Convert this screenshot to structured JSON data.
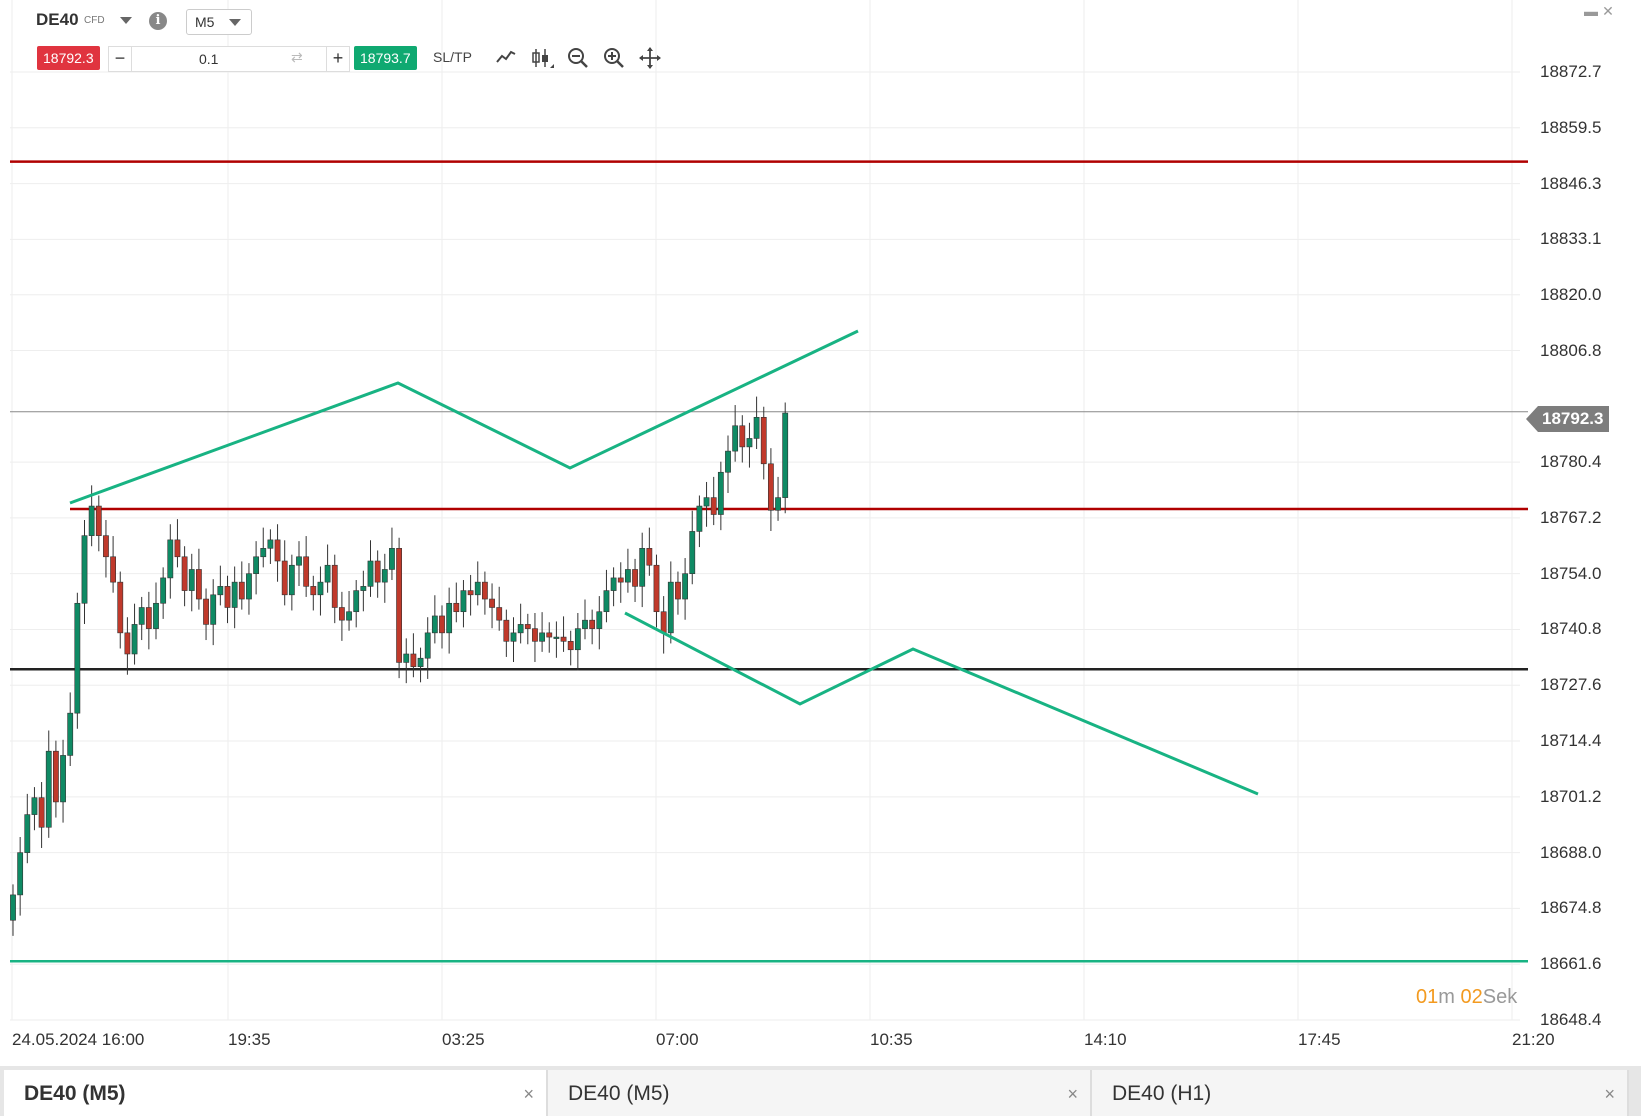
{
  "header": {
    "symbol": "DE40",
    "symbol_type": "CFD",
    "timeframe": "M5",
    "sell_price": "18792.3",
    "buy_price": "18793.7",
    "quantity": "0.1",
    "minus_label": "−",
    "plus_label": "+",
    "swap_icon": "⇄",
    "sltp_label": "SL/TP",
    "info_icon": "i"
  },
  "window_controls": [
    "minimize-icon",
    "close-icon"
  ],
  "toolbar_icons": [
    "line-chart-icon",
    "candlestick-icon",
    "zoom-out-icon",
    "zoom-in-icon",
    "crosshair-icon"
  ],
  "price_axis": [
    "18872.7",
    "18859.5",
    "18846.3",
    "18833.1",
    "18820.0",
    "18806.8",
    "18780.4",
    "18767.2",
    "18754.0",
    "18740.8",
    "18727.6",
    "18714.4",
    "18701.2",
    "18688.0",
    "18674.8",
    "18661.6",
    "18648.4"
  ],
  "current_price": "18792.3",
  "time_axis": [
    "24.05.2024 16:00",
    "19:35",
    "03:25",
    "07:00",
    "10:35",
    "14:10",
    "17:45",
    "21:20"
  ],
  "countdown": {
    "min_value": "01",
    "min_unit": "m",
    "sec_value": "02",
    "sec_unit": "Sek"
  },
  "tabs": [
    {
      "label": "DE40 (M5)",
      "active": true
    },
    {
      "label": "DE40 (M5)",
      "active": false
    },
    {
      "label": "DE40 (H1)",
      "active": false
    }
  ],
  "tab_close": "×",
  "colors": {
    "bull": "#0f8a64",
    "bear": "#c0392b",
    "resistance": "#b00000",
    "support": "#222222",
    "projection": "#18b383",
    "sell_bg": "#e0343f",
    "buy_bg": "#0fa971"
  },
  "chart_data": {
    "type": "candlestick",
    "y_range": [
      18648.4,
      18878
    ],
    "horizontal_lines": [
      {
        "price": 18851.5,
        "color": "#b00000"
      },
      {
        "price": 18769.3,
        "color": "#b00000"
      },
      {
        "price": 18731.4,
        "color": "#222222"
      },
      {
        "price": 18662.3,
        "color": "#18b383"
      },
      {
        "price": 18792.3,
        "color": "#888888"
      }
    ],
    "closes": [
      18678,
      18688,
      18697,
      18701,
      18694,
      18712,
      18700,
      18711,
      18721,
      18747,
      18763,
      18770,
      18763,
      18758,
      18752,
      18740,
      18735,
      18742,
      18746,
      18741,
      18747,
      18753,
      18762,
      18758,
      18750,
      18755,
      18748,
      18742,
      18749,
      18751,
      18746,
      18752,
      18748,
      18754,
      18758,
      18760,
      18762,
      18757,
      18749,
      18756,
      18758,
      18751,
      18749,
      18752,
      18756,
      18746,
      18743,
      18745,
      18750,
      18751,
      18757,
      18752,
      18755,
      18760,
      18733,
      18735,
      18732,
      18734,
      18740,
      18744,
      18740,
      18747,
      18745,
      18750,
      18749,
      18752,
      18748,
      18746,
      18743,
      18738,
      18740,
      18742,
      18741,
      18738,
      18740,
      18739,
      18739,
      18738,
      18736,
      18741,
      18743,
      18741,
      18745,
      18750,
      18753,
      18752,
      18755,
      18751,
      18760,
      18756,
      18745,
      18740,
      18752,
      18748,
      18754,
      18764,
      18770,
      18772,
      18768,
      18778,
      18783,
      18789,
      18784,
      18786,
      18791,
      18780,
      18769,
      18772,
      18792
    ],
    "annotations_lines": [
      [
        [
          70,
          503
        ],
        [
          398,
          383
        ],
        [
          570,
          468
        ],
        [
          858,
          331
        ]
      ],
      [
        [
          625,
          613
        ],
        [
          800,
          704
        ],
        [
          913,
          649
        ],
        [
          1258,
          794
        ]
      ]
    ]
  }
}
